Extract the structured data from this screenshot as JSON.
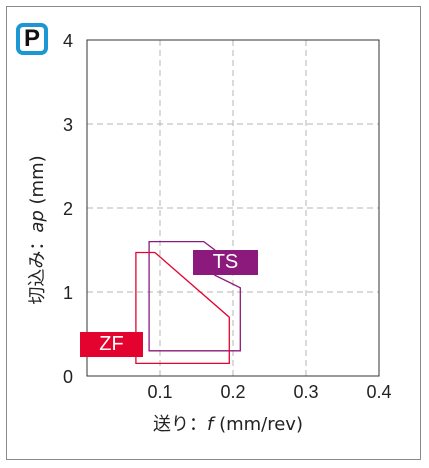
{
  "badge": {
    "letter": "P",
    "color": "#1a97d4"
  },
  "chart_data": {
    "type": "area",
    "xlim": [
      0,
      0.4
    ],
    "ylim": [
      0,
      4
    ],
    "x_ticks": [
      "0.1",
      "0.2",
      "0.3",
      "0.4"
    ],
    "y_ticks": [
      "0",
      "1",
      "2",
      "3",
      "4"
    ],
    "grid": true,
    "xlabel": {
      "prefix": "送り：",
      "var": "f",
      "unit": " (mm/rev)"
    },
    "ylabel": {
      "prefix": "切込み：",
      "var": "ap",
      "unit": " (mm)"
    },
    "series": [
      {
        "name": "TS",
        "color": "#8b1a7c",
        "points": [
          [
            0.085,
            1.6
          ],
          [
            0.16,
            1.6
          ],
          [
            0.175,
            1.5
          ],
          [
            0.175,
            1.2
          ],
          [
            0.21,
            1.05
          ],
          [
            0.21,
            0.3
          ],
          [
            0.085,
            0.3
          ]
        ]
      },
      {
        "name": "ZF",
        "color": "#e4032e",
        "points": [
          [
            0.067,
            1.47
          ],
          [
            0.093,
            1.47
          ],
          [
            0.195,
            0.7
          ],
          [
            0.195,
            0.15
          ],
          [
            0.067,
            0.15
          ]
        ]
      }
    ]
  }
}
